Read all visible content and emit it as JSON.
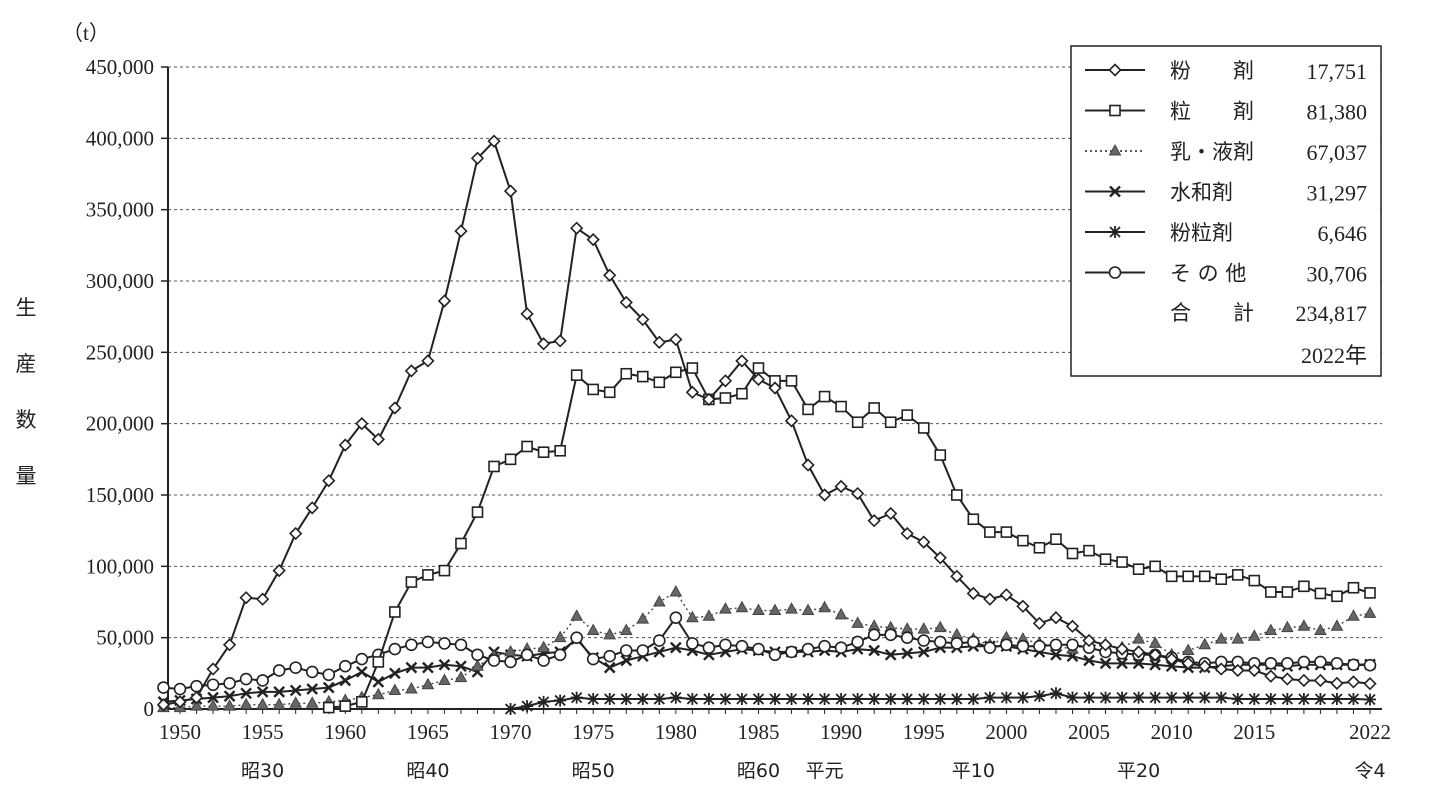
{
  "chart_data": {
    "type": "line",
    "title": "",
    "unit_label": "（t）",
    "ylabel": "生産数量",
    "ylim": [
      0,
      450000
    ],
    "yticks": [
      0,
      50000,
      100000,
      150000,
      200000,
      250000,
      300000,
      350000,
      400000,
      450000
    ],
    "ytick_labels": [
      "0",
      "50,000",
      "100,000",
      "150,000",
      "200,000",
      "250,000",
      "300,000",
      "350,000",
      "400,000",
      "450,000"
    ],
    "xlim": [
      1950,
      2022
    ],
    "xticks": [
      1950,
      1955,
      1960,
      1965,
      1970,
      1975,
      1980,
      1985,
      1990,
      1995,
      2000,
      2005,
      2010,
      2015,
      2022
    ],
    "xtick_labels": [
      "1950",
      "1955",
      "1960",
      "1965",
      "1970",
      "1975",
      "1980",
      "1985",
      "1990",
      "1995",
      "2000",
      "2005",
      "2010",
      "2015",
      "2022"
    ],
    "era_labels": [
      {
        "x": 1955,
        "label": "昭30"
      },
      {
        "x": 1965,
        "label": "昭40"
      },
      {
        "x": 1975,
        "label": "昭50"
      },
      {
        "x": 1985,
        "label": "昭60"
      },
      {
        "x": 1989,
        "label": "平元"
      },
      {
        "x": 1998,
        "label": "平10"
      },
      {
        "x": 2008,
        "label": "平20"
      },
      {
        "x": 2022,
        "label": "令4"
      }
    ],
    "grid": "horizontal-dashed",
    "legend_position": "top-right",
    "series": [
      {
        "name": "粉　　剤",
        "value_label": "17,751",
        "marker": "diamond",
        "line": "solid",
        "x": [
          1949,
          1950,
          1951,
          1952,
          1953,
          1954,
          1955,
          1956,
          1957,
          1958,
          1959,
          1960,
          1961,
          1962,
          1963,
          1964,
          1965,
          1966,
          1967,
          1968,
          1969,
          1970,
          1971,
          1972,
          1973,
          1974,
          1975,
          1976,
          1977,
          1978,
          1979,
          1980,
          1981,
          1982,
          1983,
          1984,
          1985,
          1986,
          1987,
          1988,
          1989,
          1990,
          1991,
          1992,
          1993,
          1994,
          1995,
          1996,
          1997,
          1998,
          1999,
          2000,
          2001,
          2002,
          2003,
          2004,
          2005,
          2006,
          2007,
          2008,
          2009,
          2010,
          2011,
          2012,
          2013,
          2014,
          2015,
          2016,
          2017,
          2018,
          2019,
          2020,
          2021,
          2022
        ],
        "y": [
          3000,
          5000,
          8000,
          28000,
          45000,
          78000,
          77000,
          97000,
          123000,
          141000,
          160000,
          185000,
          200000,
          189000,
          211000,
          237000,
          244000,
          286000,
          335000,
          386000,
          398000,
          363000,
          277000,
          256000,
          258000,
          337000,
          329000,
          304000,
          285000,
          273000,
          257000,
          259000,
          222000,
          217000,
          230000,
          244000,
          231000,
          225000,
          202000,
          171000,
          150000,
          156000,
          151000,
          132000,
          137000,
          123000,
          117000,
          106000,
          93000,
          81000,
          77000,
          80000,
          72000,
          60000,
          64000,
          58000,
          48000,
          45000,
          42000,
          40000,
          38000,
          35000,
          32000,
          30000,
          28000,
          27000,
          27000,
          23000,
          21000,
          20000,
          20000,
          18000,
          19000,
          17751
        ]
      },
      {
        "name": "粒　　剤",
        "value_label": "81,380",
        "marker": "square",
        "line": "solid",
        "x": [
          1959,
          1960,
          1961,
          1962,
          1963,
          1964,
          1965,
          1966,
          1967,
          1968,
          1969,
          1970,
          1971,
          1972,
          1973,
          1974,
          1975,
          1976,
          1977,
          1978,
          1979,
          1980,
          1981,
          1982,
          1983,
          1984,
          1985,
          1986,
          1987,
          1988,
          1989,
          1990,
          1991,
          1992,
          1993,
          1994,
          1995,
          1996,
          1997,
          1998,
          1999,
          2000,
          2001,
          2002,
          2003,
          2004,
          2005,
          2006,
          2007,
          2008,
          2009,
          2010,
          2011,
          2012,
          2013,
          2014,
          2015,
          2016,
          2017,
          2018,
          2019,
          2020,
          2021,
          2022
        ],
        "y": [
          1000,
          2000,
          5000,
          33000,
          68000,
          89000,
          94000,
          97000,
          116000,
          138000,
          170000,
          175000,
          184000,
          180000,
          181000,
          234000,
          224000,
          222000,
          235000,
          233000,
          229000,
          236000,
          239000,
          217000,
          218000,
          221000,
          239000,
          230000,
          230000,
          210000,
          219000,
          212000,
          201000,
          211000,
          201000,
          206000,
          197000,
          178000,
          150000,
          133000,
          124000,
          124000,
          118000,
          113000,
          119000,
          109000,
          111000,
          105000,
          103000,
          98000,
          100000,
          93000,
          93000,
          93000,
          91000,
          94000,
          90000,
          82000,
          82000,
          86000,
          81000,
          79000,
          85000,
          81380
        ]
      },
      {
        "name": "乳・液剤",
        "value_label": "67,037",
        "marker": "triangle",
        "line": "dotted",
        "x": [
          1949,
          1950,
          1951,
          1952,
          1953,
          1954,
          1955,
          1956,
          1957,
          1958,
          1959,
          1960,
          1961,
          1962,
          1963,
          1964,
          1965,
          1966,
          1967,
          1968,
          1969,
          1970,
          1971,
          1972,
          1973,
          1974,
          1975,
          1976,
          1977,
          1978,
          1979,
          1980,
          1981,
          1982,
          1983,
          1984,
          1985,
          1986,
          1987,
          1988,
          1989,
          1990,
          1991,
          1992,
          1993,
          1994,
          1995,
          1996,
          1997,
          1998,
          1999,
          2000,
          2001,
          2002,
          2003,
          2004,
          2005,
          2006,
          2007,
          2008,
          2009,
          2010,
          2011,
          2012,
          2013,
          2014,
          2015,
          2016,
          2017,
          2018,
          2019,
          2020,
          2021,
          2022
        ],
        "y": [
          1000,
          1000,
          2000,
          2000,
          2000,
          3000,
          3000,
          3000,
          4000,
          4000,
          5000,
          6000,
          8000,
          10000,
          13000,
          14000,
          17000,
          20000,
          22000,
          30000,
          37000,
          40000,
          42000,
          43000,
          50000,
          65000,
          55000,
          52000,
          55000,
          63000,
          75000,
          82000,
          64000,
          65000,
          70000,
          71000,
          69000,
          69000,
          70000,
          69000,
          71000,
          66000,
          60000,
          58000,
          57000,
          56000,
          56000,
          57000,
          52000,
          49000,
          45000,
          50000,
          49000,
          46000,
          44000,
          42000,
          45000,
          44000,
          43000,
          49000,
          46000,
          38000,
          41000,
          45000,
          49000,
          49000,
          51000,
          55000,
          57000,
          58000,
          55000,
          58000,
          65000,
          67037
        ]
      },
      {
        "name": "水和剤",
        "value_label": "31,297",
        "marker": "x",
        "line": "solid",
        "x": [
          1949,
          1950,
          1951,
          1952,
          1953,
          1954,
          1955,
          1956,
          1957,
          1958,
          1959,
          1960,
          1961,
          1962,
          1963,
          1964,
          1965,
          1966,
          1967,
          1968,
          1969,
          1970,
          1971,
          1972,
          1973,
          1974,
          1975,
          1976,
          1977,
          1978,
          1979,
          1980,
          1981,
          1982,
          1983,
          1984,
          1985,
          1986,
          1987,
          1988,
          1989,
          1990,
          1991,
          1992,
          1993,
          1994,
          1995,
          1996,
          1997,
          1998,
          1999,
          2000,
          2001,
          2002,
          2003,
          2004,
          2005,
          2006,
          2007,
          2008,
          2009,
          2010,
          2011,
          2012,
          2013,
          2014,
          2015,
          2016,
          2017,
          2018,
          2019,
          2020,
          2021,
          2022
        ],
        "y": [
          5000,
          6000,
          7000,
          8000,
          9000,
          11000,
          12000,
          12000,
          13000,
          14000,
          15000,
          20000,
          26000,
          19000,
          25000,
          29000,
          29000,
          31000,
          30000,
          26000,
          40000,
          38000,
          37000,
          39000,
          40000,
          49000,
          36000,
          29000,
          34000,
          37000,
          40000,
          43000,
          41000,
          38000,
          40000,
          42000,
          41000,
          40000,
          40000,
          40000,
          41000,
          40000,
          42000,
          41000,
          38000,
          39000,
          40000,
          43000,
          43000,
          44000,
          44000,
          44000,
          42000,
          40000,
          38000,
          37000,
          34000,
          32000,
          32000,
          32000,
          31000,
          30000,
          29000,
          29000,
          30000,
          31000,
          31000,
          31000,
          30000,
          31000,
          31000,
          31000,
          31000,
          31297
        ]
      },
      {
        "name": "粉粒剤",
        "value_label": "6,646",
        "marker": "asterisk",
        "line": "solid",
        "x": [
          1970,
          1971,
          1972,
          1973,
          1974,
          1975,
          1976,
          1977,
          1978,
          1979,
          1980,
          1981,
          1982,
          1983,
          1984,
          1985,
          1986,
          1987,
          1988,
          1989,
          1990,
          1991,
          1992,
          1993,
          1994,
          1995,
          1996,
          1997,
          1998,
          1999,
          2000,
          2001,
          2002,
          2003,
          2004,
          2005,
          2006,
          2007,
          2008,
          2009,
          2010,
          2011,
          2012,
          2013,
          2014,
          2015,
          2016,
          2017,
          2018,
          2019,
          2020,
          2021,
          2022
        ],
        "y": [
          0,
          2000,
          5000,
          6000,
          8000,
          7000,
          7000,
          7000,
          7000,
          7000,
          8000,
          7000,
          7000,
          7000,
          7000,
          7000,
          7000,
          7000,
          7000,
          7000,
          7000,
          7000,
          7000,
          7000,
          7000,
          7000,
          7000,
          7000,
          7000,
          8000,
          8000,
          8000,
          9000,
          11000,
          8000,
          8000,
          8000,
          8000,
          8000,
          8000,
          8000,
          8000,
          8000,
          8000,
          7000,
          7000,
          7000,
          7000,
          7000,
          7000,
          7000,
          7000,
          6646
        ]
      },
      {
        "name": "そ の 他",
        "value_label": "30,706",
        "marker": "circle",
        "line": "solid",
        "x": [
          1949,
          1950,
          1951,
          1952,
          1953,
          1954,
          1955,
          1956,
          1957,
          1958,
          1959,
          1960,
          1961,
          1962,
          1963,
          1964,
          1965,
          1966,
          1967,
          1968,
          1969,
          1970,
          1971,
          1972,
          1973,
          1974,
          1975,
          1976,
          1977,
          1978,
          1979,
          1980,
          1981,
          1982,
          1983,
          1984,
          1985,
          1986,
          1987,
          1988,
          1989,
          1990,
          1991,
          1992,
          1993,
          1994,
          1995,
          1996,
          1997,
          1998,
          1999,
          2000,
          2001,
          2002,
          2003,
          2004,
          2005,
          2006,
          2007,
          2008,
          2009,
          2010,
          2011,
          2012,
          2013,
          2014,
          2015,
          2016,
          2017,
          2018,
          2019,
          2020,
          2021,
          2022
        ],
        "y": [
          15000,
          14000,
          16000,
          17000,
          18000,
          21000,
          20000,
          27000,
          29000,
          26000,
          24000,
          30000,
          35000,
          38000,
          42000,
          45000,
          47000,
          46000,
          45000,
          38000,
          34000,
          33000,
          38000,
          34000,
          38000,
          50000,
          35000,
          37000,
          41000,
          41000,
          48000,
          64000,
          46000,
          43000,
          45000,
          44000,
          42000,
          38000,
          40000,
          42000,
          44000,
          43000,
          47000,
          52000,
          52000,
          50000,
          48000,
          47000,
          46000,
          47000,
          43000,
          45000,
          44000,
          44000,
          45000,
          45000,
          43000,
          40000,
          39000,
          38000,
          38000,
          36000,
          33000,
          32000,
          33000,
          33000,
          32000,
          32000,
          32000,
          33000,
          33000,
          32000,
          31000,
          30706
        ]
      }
    ],
    "total": {
      "label": "合　　計",
      "value_label": "234,817"
    },
    "year_note": "2022年"
  }
}
